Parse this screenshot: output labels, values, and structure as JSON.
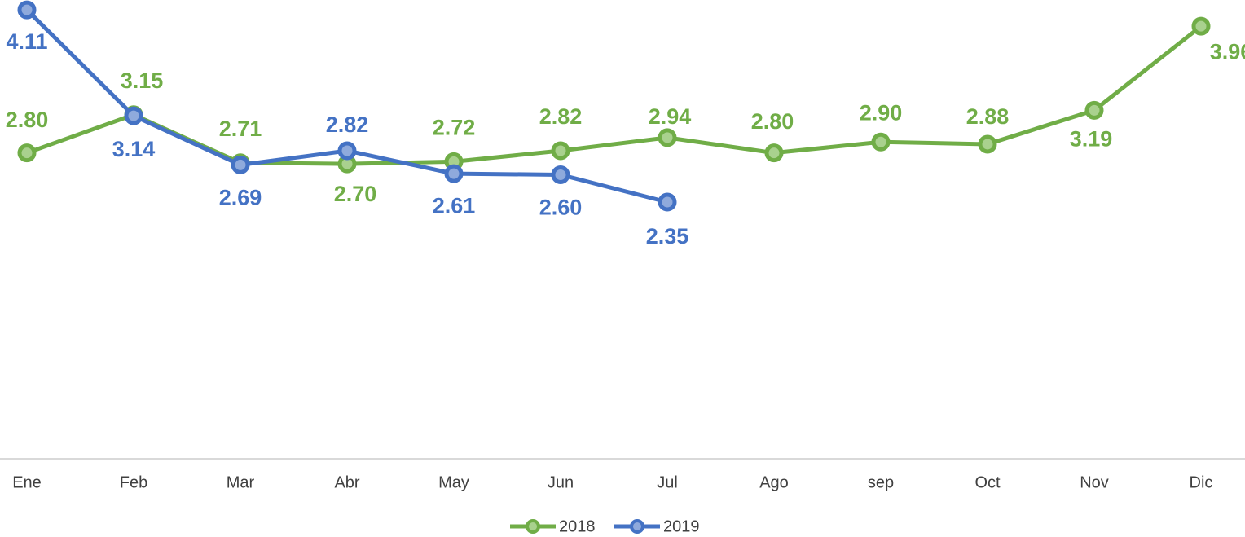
{
  "chart_data": {
    "type": "line",
    "categories": [
      "Ene",
      "Feb",
      "Mar",
      "Abr",
      "May",
      "Jun",
      "Jul",
      "Ago",
      "sep",
      "Oct",
      "Nov",
      "Dic"
    ],
    "ylim": [
      0,
      4.2
    ],
    "legend": "bottom",
    "series": [
      {
        "name": "2018",
        "color": "#70ad47",
        "values": [
          2.8,
          3.15,
          2.71,
          2.7,
          2.72,
          2.82,
          2.94,
          2.8,
          2.9,
          2.88,
          3.19,
          3.96
        ],
        "value_labels": [
          "2.80",
          "3.15",
          "2.71",
          "2.70",
          "2.72",
          "2.82",
          "2.94",
          "2.80",
          "2.90",
          "2.88",
          "3.19",
          "3.96"
        ]
      },
      {
        "name": "2019",
        "color": "#4472c4",
        "values": [
          4.11,
          3.14,
          2.69,
          2.82,
          2.61,
          2.6,
          2.35,
          null,
          null,
          null,
          null,
          null
        ],
        "value_labels": [
          "4.11",
          "3.14",
          "2.69",
          "2.82",
          "2.61",
          "2.60",
          "2.35",
          null,
          null,
          null,
          null,
          null
        ]
      }
    ]
  }
}
